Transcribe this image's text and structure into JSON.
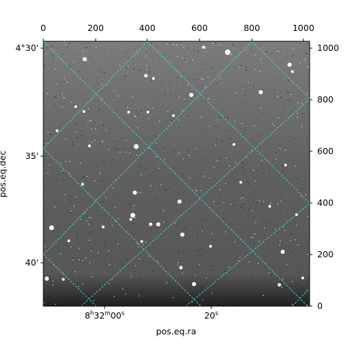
{
  "colors": {
    "grid": "#3fd4d4",
    "background": "#ffffff",
    "image_dark": "#2a2a2a",
    "image_mid": "#6e6e6e",
    "star": "#ffffff"
  },
  "axes": {
    "xlabel": "pos.eq.ra",
    "ylabel": "pos.eq.dec",
    "top_ticks": [
      "0",
      "200",
      "400",
      "600",
      "800",
      "1000"
    ],
    "right_ticks": [
      "0",
      "200",
      "400",
      "600",
      "800",
      "1000"
    ],
    "left_ticks": [
      "4°30'",
      "35'",
      "40'"
    ],
    "bottom_ticks": [
      {
        "h": "8",
        "hs": "h",
        "m": "32",
        "ms": "m",
        "s": "00",
        "ss": "s"
      },
      {
        "text": "20",
        "ss": "s"
      }
    ]
  }
}
